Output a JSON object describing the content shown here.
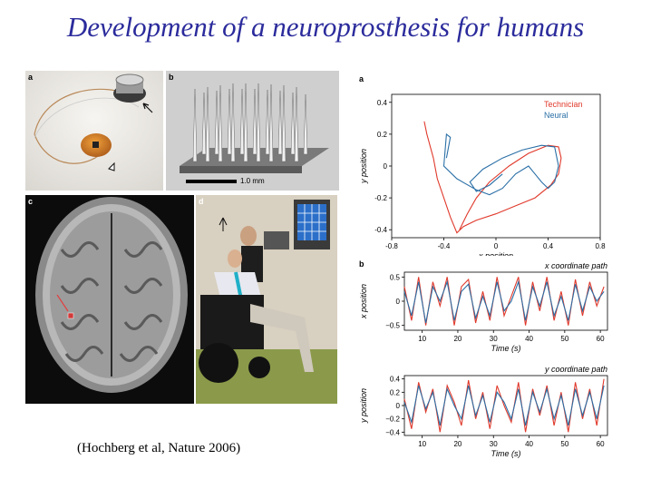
{
  "title": "Development of a neuroprosthesis for humans",
  "citation": "(Hochberg et al, Nature 2006)",
  "photos": {
    "a": {
      "label": "a"
    },
    "b": {
      "label": "b",
      "scale": "1.0 mm"
    },
    "c": {
      "label": "c"
    },
    "d": {
      "label": "d"
    }
  },
  "chart_data": [
    {
      "type": "line",
      "label": "a",
      "xlabel": "x position",
      "ylabel": "y position",
      "xlim": [
        -0.8,
        0.8
      ],
      "ylim": [
        -0.45,
        0.45
      ],
      "xticks": [
        "-0.8",
        "-0.4",
        "0",
        "0.4",
        "0.8"
      ],
      "yticks": [
        "0.4",
        "0.2",
        "0",
        "-0.2",
        "-0.4"
      ],
      "legend_position": "top-right",
      "series": [
        {
          "name": "Technician",
          "color": "#e0392b",
          "x": [
            -0.55,
            -0.53,
            -0.48,
            -0.45,
            -0.4,
            -0.35,
            -0.3,
            -0.25,
            -0.15,
            0.0,
            0.15,
            0.3,
            0.42,
            0.48,
            0.5,
            0.48,
            0.4,
            0.25,
            0.1,
            -0.05,
            -0.15,
            -0.22,
            -0.28
          ],
          "y": [
            0.28,
            0.2,
            0.05,
            -0.08,
            -0.2,
            -0.32,
            -0.42,
            -0.38,
            -0.34,
            -0.3,
            -0.25,
            -0.2,
            -0.12,
            -0.05,
            0.05,
            0.12,
            0.13,
            0.08,
            0.0,
            -0.1,
            -0.2,
            -0.3,
            -0.4
          ]
        },
        {
          "name": "Neural",
          "color": "#2a6fa6",
          "x": [
            -0.38,
            -0.35,
            -0.38,
            -0.4,
            -0.3,
            -0.15,
            -0.05,
            0.05,
            0.15,
            0.25,
            0.3,
            0.35,
            0.4,
            0.45,
            0.48,
            0.45,
            0.35,
            0.2,
            0.05,
            -0.1,
            -0.2,
            -0.15,
            -0.05,
            0.05
          ],
          "y": [
            0.05,
            0.18,
            0.2,
            0.0,
            -0.08,
            -0.15,
            -0.18,
            -0.14,
            -0.05,
            0.0,
            -0.05,
            -0.1,
            -0.14,
            -0.1,
            0.0,
            0.12,
            0.13,
            0.1,
            0.05,
            -0.02,
            -0.1,
            -0.16,
            -0.12,
            -0.05
          ]
        }
      ]
    },
    {
      "type": "line",
      "label": "b",
      "title": "x coordinate path",
      "xlabel": "Time (s)",
      "ylabel": "x position",
      "xlim": [
        5,
        62
      ],
      "ylim": [
        -0.6,
        0.6
      ],
      "xticks": [
        "10",
        "20",
        "30",
        "40",
        "50",
        "60"
      ],
      "yticks": [
        "0.5",
        "0",
        "−0.5"
      ],
      "series": [
        {
          "color": "#e0392b",
          "x": [
            5,
            7,
            9,
            11,
            13,
            15,
            17,
            19,
            21,
            23,
            25,
            27,
            29,
            31,
            33,
            35,
            37,
            39,
            41,
            43,
            45,
            47,
            49,
            51,
            53,
            55,
            57,
            59,
            61
          ],
          "y": [
            0.3,
            -0.4,
            0.5,
            -0.5,
            0.4,
            -0.1,
            0.5,
            -0.5,
            0.3,
            0.45,
            -0.45,
            0.2,
            -0.4,
            0.5,
            -0.3,
            0.1,
            0.5,
            -0.5,
            0.4,
            -0.2,
            0.5,
            -0.4,
            0.2,
            -0.5,
            0.45,
            -0.3,
            0.4,
            -0.1,
            0.3
          ]
        },
        {
          "color": "#2a6fa6",
          "x": [
            5,
            7,
            9,
            11,
            13,
            15,
            17,
            19,
            21,
            23,
            25,
            27,
            29,
            31,
            33,
            35,
            37,
            39,
            41,
            43,
            45,
            47,
            49,
            51,
            53,
            55,
            57,
            59,
            61
          ],
          "y": [
            0.2,
            -0.3,
            0.4,
            -0.45,
            0.3,
            0.0,
            0.4,
            -0.4,
            0.2,
            0.35,
            -0.35,
            0.1,
            -0.3,
            0.4,
            -0.2,
            0.0,
            0.4,
            -0.4,
            0.3,
            -0.1,
            0.4,
            -0.3,
            0.1,
            -0.4,
            0.35,
            -0.2,
            0.3,
            0.0,
            0.2
          ]
        }
      ]
    },
    {
      "type": "line",
      "title": "y coordinate path",
      "xlabel": "Time (s)",
      "ylabel": "y position",
      "xlim": [
        5,
        62
      ],
      "ylim": [
        -0.45,
        0.45
      ],
      "xticks": [
        "10",
        "20",
        "30",
        "40",
        "50",
        "60"
      ],
      "yticks": [
        "0.4",
        "0.2",
        "0",
        "−0.2",
        "−0.4"
      ],
      "series": [
        {
          "color": "#e0392b",
          "x": [
            5,
            7,
            9,
            11,
            13,
            15,
            17,
            19,
            21,
            23,
            25,
            27,
            29,
            31,
            33,
            35,
            37,
            39,
            41,
            43,
            45,
            47,
            49,
            51,
            53,
            55,
            57,
            59,
            61
          ],
          "y": [
            0.1,
            -0.35,
            0.35,
            -0.1,
            0.25,
            -0.4,
            0.3,
            0.05,
            -0.3,
            0.38,
            -0.2,
            0.2,
            -0.35,
            0.3,
            0.0,
            -0.25,
            0.35,
            -0.4,
            0.25,
            -0.15,
            0.3,
            -0.3,
            0.2,
            -0.4,
            0.35,
            -0.2,
            0.25,
            -0.3,
            0.4
          ]
        },
        {
          "color": "#2a6fa6",
          "x": [
            5,
            7,
            9,
            11,
            13,
            15,
            17,
            19,
            21,
            23,
            25,
            27,
            29,
            31,
            33,
            35,
            37,
            39,
            41,
            43,
            45,
            47,
            49,
            51,
            53,
            55,
            57,
            59,
            61
          ],
          "y": [
            0.05,
            -0.25,
            0.3,
            -0.05,
            0.2,
            -0.3,
            0.25,
            0.0,
            -0.2,
            0.3,
            -0.15,
            0.15,
            -0.25,
            0.2,
            0.05,
            -0.2,
            0.25,
            -0.3,
            0.2,
            -0.1,
            0.25,
            -0.2,
            0.15,
            -0.3,
            0.25,
            -0.15,
            0.2,
            -0.2,
            0.3
          ]
        }
      ]
    }
  ]
}
